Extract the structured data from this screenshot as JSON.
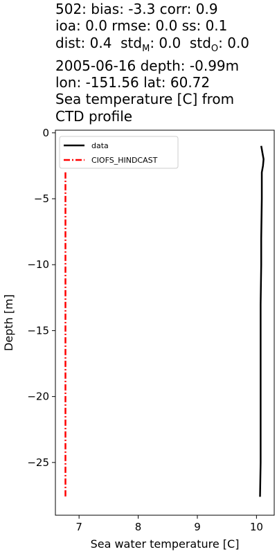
{
  "title_lines": [
    "502: bias: -3.3  corr: 0.9",
    "ioa: 0.0  rmse: 0.0  ss: 0.1",
    "dist: 0.4  std_M: 0.0  std_O: 0.0",
    "2005-06-16 depth: -0.99m",
    "lon: -151.56 lat: 60.72",
    "Sea temperature [C] from",
    "CTD profile"
  ],
  "chart_data": {
    "type": "line",
    "xlabel": "Sea water temperature [C]",
    "ylabel": "Depth [m]",
    "xlim": [
      6.6,
      10.3
    ],
    "ylim": [
      -29.0,
      0.2
    ],
    "xticks": [
      7,
      8,
      9,
      10
    ],
    "yticks": [
      0,
      -5,
      -10,
      -15,
      -20,
      -25
    ],
    "xtick_labels": [
      "7",
      "8",
      "9",
      "10"
    ],
    "ytick_labels": [
      "0",
      "−5",
      "−10",
      "−15",
      "−20",
      "−25"
    ],
    "grid": false,
    "legend_position": "top-left",
    "series": [
      {
        "name": "data",
        "color": "#000000",
        "style": "solid",
        "points": [
          [
            10.08,
            -0.99
          ],
          [
            10.1,
            -1.5
          ],
          [
            10.12,
            -2.0
          ],
          [
            10.11,
            -2.5
          ],
          [
            10.09,
            -3.0
          ],
          [
            10.09,
            -5.0
          ],
          [
            10.08,
            -8.0
          ],
          [
            10.08,
            -10.0
          ],
          [
            10.07,
            -13.0
          ],
          [
            10.07,
            -20.0
          ],
          [
            10.07,
            -25.0
          ],
          [
            10.06,
            -27.6
          ]
        ]
      },
      {
        "name": "CIOFS_HINDCAST",
        "color": "#ff0000",
        "style": "dashdot",
        "points": [
          [
            6.77,
            -3.0
          ],
          [
            6.77,
            -10.0
          ],
          [
            6.77,
            -20.0
          ],
          [
            6.77,
            -27.6
          ]
        ]
      }
    ]
  }
}
